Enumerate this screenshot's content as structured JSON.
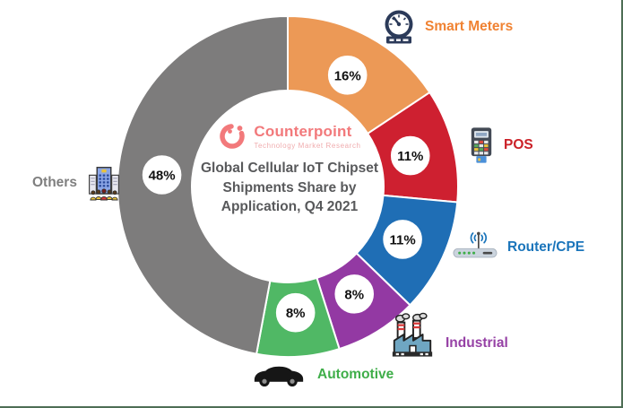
{
  "frame": {
    "background": "#FFFFFF",
    "border_color": "#4E6E55"
  },
  "branding": {
    "name": "Counterpoint",
    "tagline": "Technology Market Research",
    "brand_color": "#F2797B",
    "tagline_color": "#F0ACAE"
  },
  "chart_data": {
    "type": "pie",
    "subtype": "donut",
    "title": "Global Cellular IoT Chipset Shipments Share by Application, Q4 2021",
    "title_lines": [
      "Global Cellular IoT Chipset",
      "Shipments Share by",
      "Application, Q4 2021"
    ],
    "start_angle_deg": 0,
    "direction": "clockwise",
    "unit": "%",
    "legend_position": "around",
    "series": [
      {
        "label": "Smart Meters",
        "value": 16,
        "value_label": "16%",
        "slice_color": "#EC9956",
        "label_color": "#F08232",
        "icon": "gauge-meter-icon"
      },
      {
        "label": "POS",
        "value": 11,
        "value_label": "11%",
        "slice_color": "#CE2030",
        "label_color": "#CB2128",
        "icon": "pos-terminal-icon"
      },
      {
        "label": "Router/CPE",
        "value": 11,
        "value_label": "11%",
        "slice_color": "#1F6EB5",
        "label_color": "#1B75BB",
        "icon": "router-icon"
      },
      {
        "label": "Industrial",
        "value": 8,
        "value_label": "8%",
        "slice_color": "#9339A3",
        "label_color": "#9641A5",
        "icon": "factory-icon"
      },
      {
        "label": "Automotive",
        "value": 8,
        "value_label": "8%",
        "slice_color": "#50B865",
        "label_color": "#3FAE49",
        "icon": "car-icon"
      },
      {
        "label": "Others",
        "value": 48,
        "value_label": "48%",
        "slice_color": "#7D7C7C",
        "label_color": "#7F7F7F",
        "icon": "buildings-people-icon"
      }
    ]
  }
}
